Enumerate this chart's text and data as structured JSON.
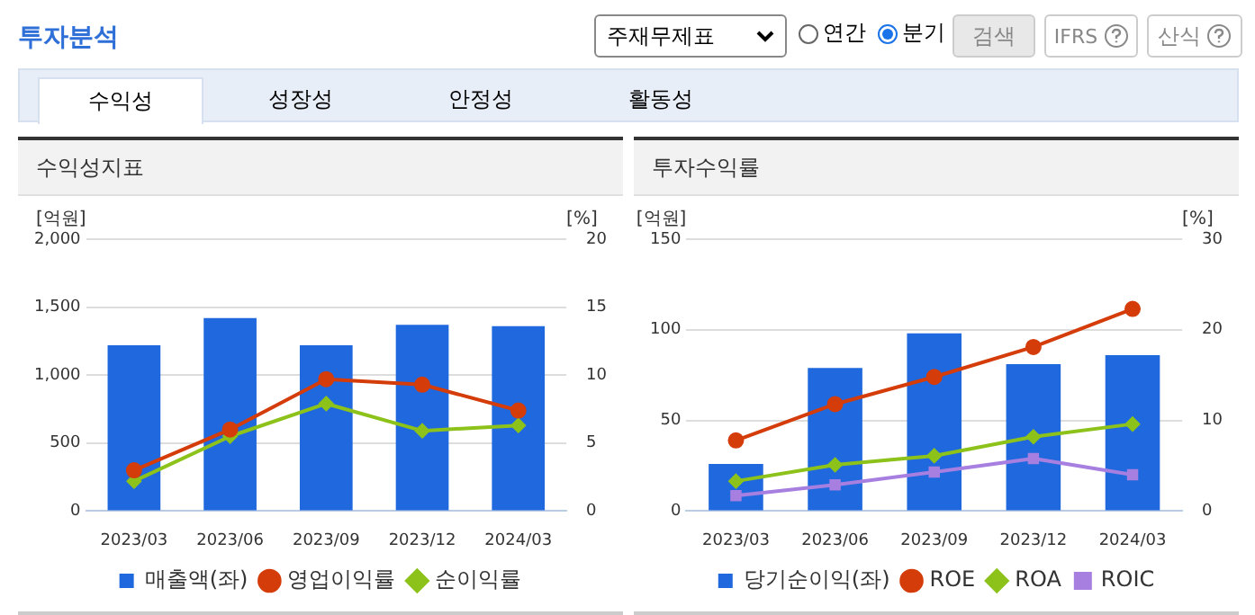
{
  "chart_data": [
    {
      "type": "bar",
      "title": "수익성지표",
      "annotations": [
        "투자분석",
        "주재무제표",
        "연간",
        "분기",
        "검색",
        "IFRS",
        "산식",
        "수익성",
        "성장성",
        "안정성",
        "활동성"
      ],
      "ylabel": "[억원]",
      "y2label": "[%]",
      "categories": [
        "2023/03",
        "2023/06",
        "2023/09",
        "2023/12",
        "2024/03"
      ],
      "series": [
        {
          "name": "매출액(좌)",
          "color": "#2068dd",
          "values": [
            1220,
            1420,
            1220,
            1370,
            1360
          ]
        },
        {
          "name": "영업이익률",
          "type": "line",
          "axis": "y2",
          "marker": "circle",
          "color": "#d43c0a",
          "values": [
            3.0,
            6.0,
            9.7,
            9.3,
            7.4
          ]
        },
        {
          "name": "순이익률",
          "type": "line",
          "axis": "y2",
          "marker": "diamond",
          "color": "#8cc21a",
          "values": [
            2.2,
            5.5,
            7.9,
            5.9,
            6.3
          ]
        }
      ],
      "ylim": [
        0,
        2000
      ],
      "yticks": [
        0,
        500,
        {
          "value": 1000,
          "label": "1,000"
        },
        {
          "value": 1500,
          "label": "1,500"
        },
        {
          "value": 2000,
          "label": "2,000"
        }
      ],
      "y2lim": [
        0,
        20
      ],
      "y2ticks": [
        0,
        5,
        10,
        15,
        20
      ],
      "grid": "y",
      "legend": "bottom"
    },
    {
      "type": "bar",
      "title": "투자수익률",
      "ylabel": "[억원]",
      "y2label": "[%]",
      "categories": [
        "2023/03",
        "2023/06",
        "2023/09",
        "2023/12",
        "2024/03"
      ],
      "series": [
        {
          "name": "당기순이익(좌)",
          "color": "#2068dd",
          "values": [
            26,
            79,
            98,
            81,
            86
          ]
        },
        {
          "name": "ROE",
          "type": "line",
          "axis": "y2",
          "marker": "circle",
          "color": "#d43c0a",
          "values": [
            7.8,
            11.8,
            14.8,
            18.1,
            22.3
          ]
        },
        {
          "name": "ROA",
          "type": "line",
          "axis": "y2",
          "marker": "diamond",
          "color": "#8cc21a",
          "values": [
            3.3,
            5.1,
            6.1,
            8.2,
            9.6
          ]
        },
        {
          "name": "ROIC",
          "type": "line",
          "axis": "y2",
          "marker": "square",
          "color": "#a77fe0",
          "values": [
            1.7,
            2.9,
            4.3,
            5.8,
            4.0
          ]
        }
      ],
      "ylim": [
        0,
        150
      ],
      "yticks": [
        0,
        50,
        100,
        150
      ],
      "y2lim": [
        0,
        30
      ],
      "y2ticks": [
        0,
        10,
        20,
        30
      ],
      "grid": "y",
      "legend": "bottom"
    }
  ]
}
